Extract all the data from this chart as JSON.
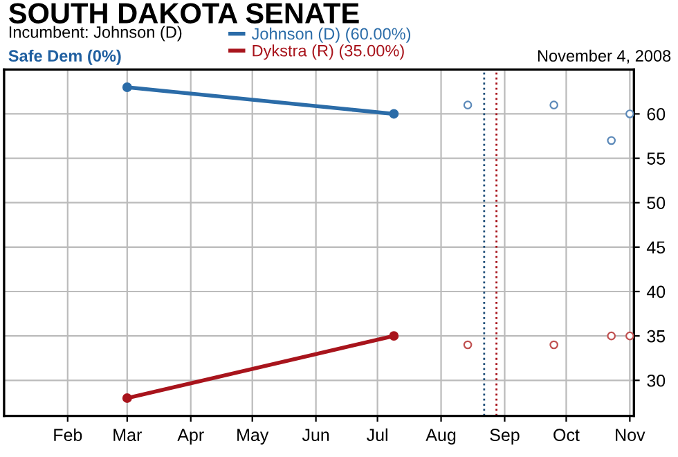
{
  "chart_data": {
    "type": "line",
    "title": "SOUTH DAKOTA SENATE",
    "annotations": [
      "Incumbent: Johnson (D)",
      "Safe Dem (0%)",
      "November 4, 2008"
    ],
    "series": [
      {
        "name": "Johnson (D) (60.00%)",
        "color": "#2b6ca8",
        "x": [
          "2008-03-01",
          "2008-07-09"
        ],
        "values": [
          63,
          60
        ],
        "marker": "circle"
      },
      {
        "name": "Dykstra (R) (35.00%)",
        "color": "#a8141c",
        "x": [
          "2008-03-01",
          "2008-07-09"
        ],
        "values": [
          28,
          35
        ],
        "marker": "circle"
      },
      {
        "type": "scatter",
        "color": "#5a88b8",
        "x": [
          "2008-08-14",
          "2008-09-25",
          "2008-10-23",
          "2008-11-01"
        ],
        "values": [
          61,
          61,
          57,
          60
        ],
        "marker": "circle"
      },
      {
        "type": "scatter",
        "color": "#c05050",
        "x": [
          "2008-08-14",
          "2008-09-25",
          "2008-10-23",
          "2008-11-01"
        ],
        "values": [
          34,
          34,
          35,
          35
        ],
        "marker": "circle"
      }
    ],
    "ref_lines": [
      {
        "axis": "x",
        "value": "2008-08-22",
        "color": "#1f4e79",
        "line_style": "dotted"
      },
      {
        "axis": "x",
        "value": "2008-08-28",
        "color": "#a8141c",
        "line_style": "dotted"
      }
    ],
    "xlim": [
      "2008-01-01",
      "2008-11-03"
    ],
    "xticks": [
      {
        "value": "2008-02-01",
        "label": "Feb"
      },
      {
        "value": "2008-03-01",
        "label": "Mar"
      },
      {
        "value": "2008-04-01",
        "label": "Apr"
      },
      {
        "value": "2008-05-01",
        "label": "May"
      },
      {
        "value": "2008-06-01",
        "label": "Jun"
      },
      {
        "value": "2008-07-01",
        "label": "Jul"
      },
      {
        "value": "2008-08-01",
        "label": "Aug"
      },
      {
        "value": "2008-09-01",
        "label": "Sep"
      },
      {
        "value": "2008-10-01",
        "label": "Oct"
      },
      {
        "value": "2008-11-01",
        "label": "Nov"
      }
    ],
    "ylim": [
      26,
      65
    ],
    "yticks": [
      30,
      35,
      40,
      45,
      50,
      55,
      60
    ],
    "grid": true,
    "legend": "top",
    "line_style": "solid"
  }
}
